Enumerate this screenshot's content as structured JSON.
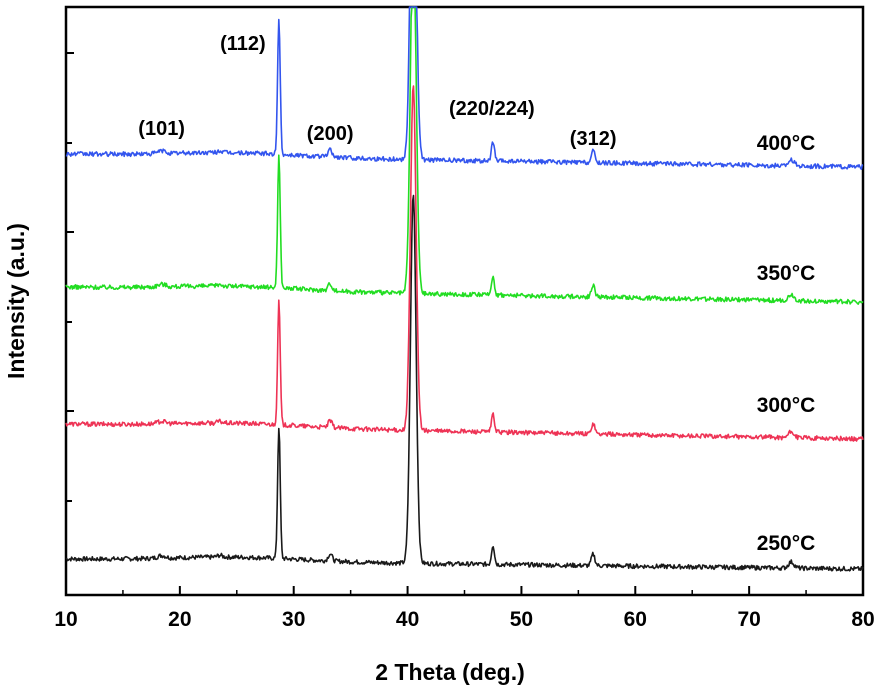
{
  "chart_data": {
    "type": "line",
    "xlabel": "2 Theta (deg.)",
    "ylabel": "Intensity (a.u.)",
    "xlim": [
      10,
      80
    ],
    "x_ticks": [
      "10",
      "20",
      "30",
      "40",
      "50",
      "60",
      "70",
      "80"
    ],
    "y_tick_labels": "none",
    "grid": false,
    "legend": "none (series labeled inline at right)",
    "peak_labels": [
      {
        "text": "(101)",
        "x": 18.4
      },
      {
        "text": "(112)",
        "x": 28.7
      },
      {
        "text": "(200)",
        "x": 33.2
      },
      {
        "text": "(220/224)",
        "x": 47.4
      },
      {
        "text": "(312)",
        "x": 56.3
      }
    ],
    "peaks": [
      {
        "x": 18.4,
        "width": 0.5,
        "height": 3
      },
      {
        "x": 23.5,
        "width": 0.3,
        "height": 2
      },
      {
        "x": 28.7,
        "width": 0.16,
        "height": 150
      },
      {
        "x": 33.2,
        "width": 0.25,
        "height": 8
      },
      {
        "x": 40.5,
        "width": 0.35,
        "height": 420
      },
      {
        "x": 47.5,
        "width": 0.18,
        "height": 22
      },
      {
        "x": 56.3,
        "width": 0.22,
        "height": 13
      },
      {
        "x": 73.7,
        "width": 0.35,
        "height": 7
      }
    ],
    "series": [
      {
        "name": "250°C",
        "color": "#1a1a1a",
        "baseline_start": 5,
        "baseline_end": -5,
        "scale": 0.88
      },
      {
        "name": "300°C",
        "color": "#ee3355",
        "baseline_start": 140,
        "baseline_end": 125,
        "scale": 0.82
      },
      {
        "name": "350°C",
        "color": "#22dd22",
        "baseline_start": 277,
        "baseline_end": 262,
        "scale": 0.88
      },
      {
        "name": "400°C",
        "color": "#3355ee",
        "baseline_start": 410,
        "baseline_end": 397,
        "scale": 0.9
      }
    ]
  }
}
